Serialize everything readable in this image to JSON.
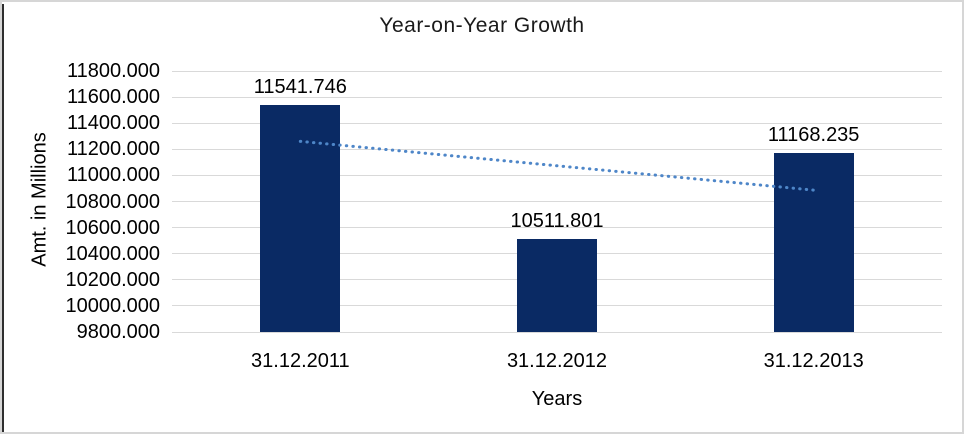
{
  "window": {
    "background": "#FFFFFF",
    "border_color": "#D6D6D6",
    "left_edge_color": "#2E2E2E"
  },
  "chart_data": {
    "type": "bar",
    "title": "Year-on-Year Growth",
    "xlabel": "Years",
    "ylabel": "Amt. in Millions",
    "categories": [
      "31.12.2011",
      "31.12.2012",
      "31.12.2013"
    ],
    "values": [
      11541.746,
      10511.801,
      11168.235
    ],
    "data_labels": [
      "11541.746",
      "10511.801",
      "11168.235"
    ],
    "ylim": [
      9800,
      11800
    ],
    "ytick_step": 200,
    "ytick_labels": [
      "11800.000",
      "11600.000",
      "11400.000",
      "11200.000",
      "11000.000",
      "10800.000",
      "10600.000",
      "10400.000",
      "10200.000",
      "10000.000",
      "9800.000"
    ],
    "grid": true,
    "legend": "none",
    "bar_color": "#0A2A64",
    "gridline_color": "#D9D9D9",
    "trendline": {
      "kind": "linear",
      "style": "dotted",
      "color": "#4E86C8",
      "start_value": 11260.7,
      "end_value": 10887.2
    }
  }
}
